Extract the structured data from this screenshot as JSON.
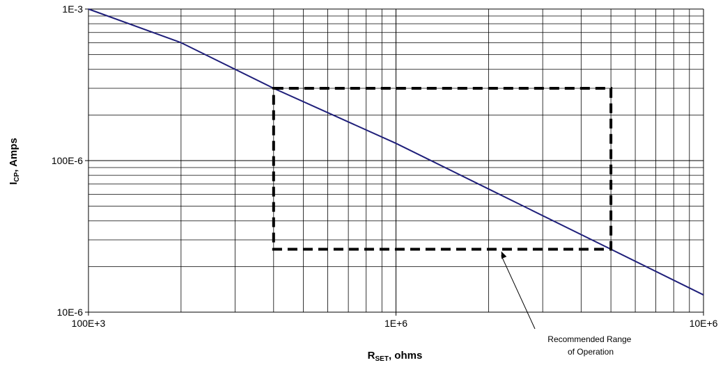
{
  "chart_data": {
    "type": "line",
    "x_scale": "log",
    "y_scale": "log",
    "xlim": [
      100000,
      10000000
    ],
    "ylim": [
      1e-05,
      0.001
    ],
    "grid": true,
    "xlabel": {
      "main": "R",
      "sub": "SET",
      "rest": ", ohms"
    },
    "ylabel": {
      "main": "I",
      "sub": "CP",
      "rest": ", Amps"
    },
    "x_ticks": [
      {
        "value": 100000,
        "label": "100E+3"
      },
      {
        "value": 1000000,
        "label": "1E+6"
      },
      {
        "value": 10000000,
        "label": "10E+6"
      }
    ],
    "y_ticks": [
      {
        "value": 0.001,
        "label": "1E-3"
      },
      {
        "value": 0.0001,
        "label": "100E-6"
      },
      {
        "value": 1e-05,
        "label": "10E-6"
      }
    ],
    "series": [
      {
        "color": "#1f1f7a",
        "x": [
          100000,
          200000,
          400000,
          1000000,
          2000000,
          5000000,
          10000000
        ],
        "y": [
          0.001,
          0.0006,
          0.0003,
          0.00013,
          6.5e-05,
          2.6e-05,
          1.3e-05
        ]
      }
    ],
    "region": {
      "x": [
        400000,
        5000000
      ],
      "y": [
        2.6e-05,
        0.0003
      ],
      "style": "dashed",
      "color": "#000000"
    },
    "annotation": {
      "lines": [
        "Recommended Range",
        "of Operation"
      ],
      "arrow_target": {
        "x": 2200000,
        "y": 2.6e-05
      }
    }
  }
}
